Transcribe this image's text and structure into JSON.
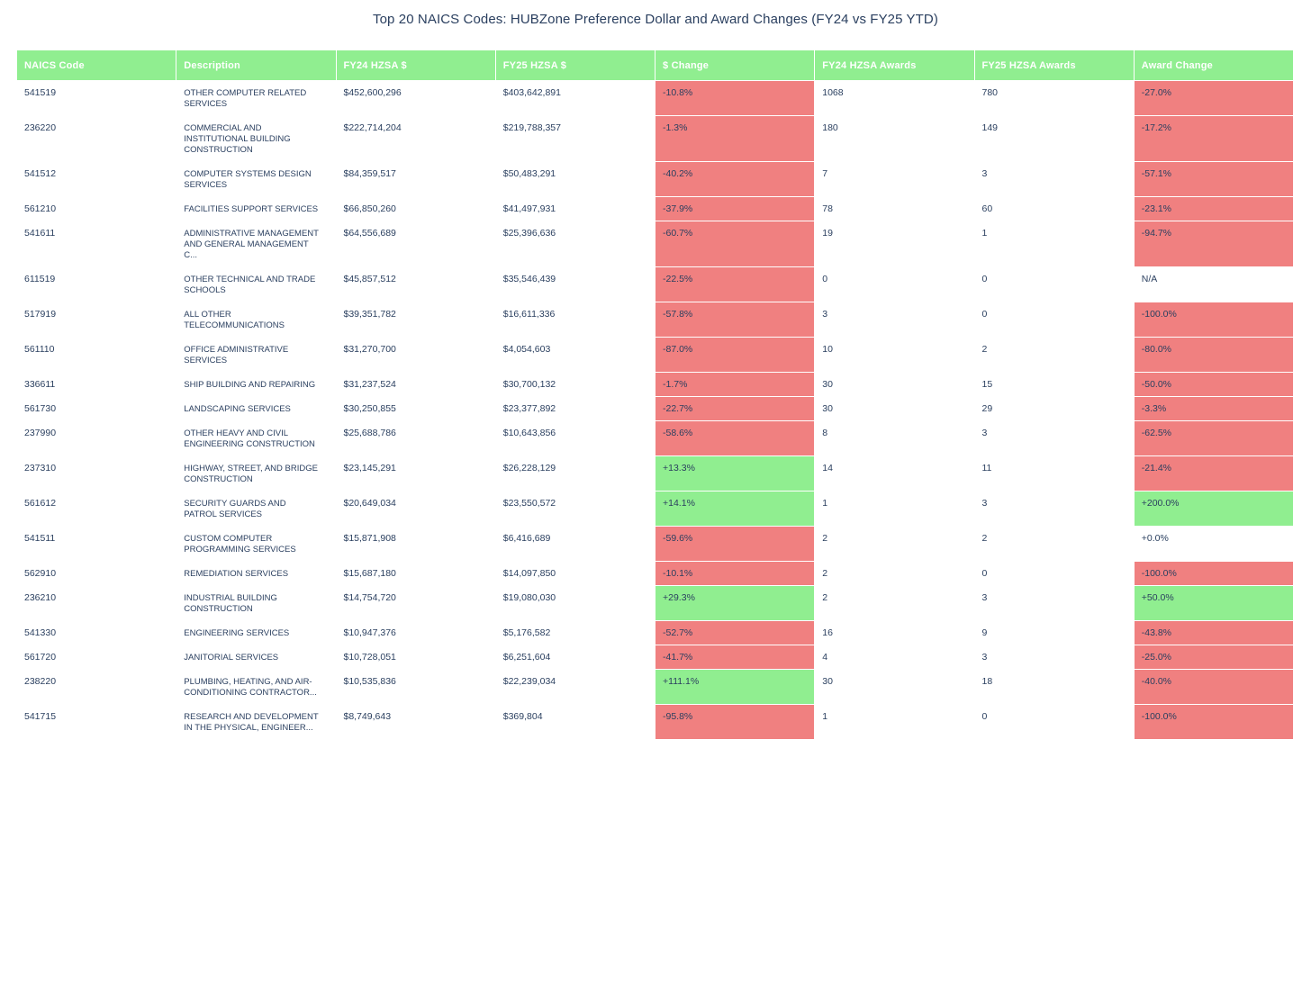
{
  "title": "Top 20 NAICS Codes: HUBZone Preference Dollar and Award Changes (FY24 vs FY25 YTD)",
  "colors": {
    "header_bg": "#90EE90",
    "header_text": "#FFFFFF",
    "negative_bg": "#F08080",
    "positive_bg": "#90EE90",
    "neutral_bg": "#FFFFFF",
    "text_color": "#2A3F5F"
  },
  "chart_data": {
    "type": "table",
    "title": "Top 20 NAICS Codes: HUBZone Preference Dollar and Award Changes (FY24 vs FY25 YTD)",
    "legend_position": "none",
    "grid": "white-cell-borders",
    "columns": [
      "NAICS Code",
      "Description",
      "FY24 HZSA $",
      "FY25 HZSA $",
      "$ Change",
      "FY24 HZSA Awards",
      "FY25 HZSA Awards",
      "Award Change"
    ],
    "rows": [
      {
        "naics": "541519",
        "description": "OTHER COMPUTER RELATED SERVICES",
        "fy24_hzsa_dollars": "$452,600,296",
        "fy25_hzsa_dollars": "$403,642,891",
        "dollar_change": "-10.8%",
        "dollar_change_sentiment": "negative",
        "fy24_hzsa_awards": "1068",
        "fy25_hzsa_awards": "780",
        "award_change": "-27.0%",
        "award_change_sentiment": "negative"
      },
      {
        "naics": "236220",
        "description": "COMMERCIAL AND INSTITUTIONAL BUILDING CONSTRUCTION",
        "fy24_hzsa_dollars": "$222,714,204",
        "fy25_hzsa_dollars": "$219,788,357",
        "dollar_change": "-1.3%",
        "dollar_change_sentiment": "negative",
        "fy24_hzsa_awards": "180",
        "fy25_hzsa_awards": "149",
        "award_change": "-17.2%",
        "award_change_sentiment": "negative"
      },
      {
        "naics": "541512",
        "description": "COMPUTER SYSTEMS DESIGN SERVICES",
        "fy24_hzsa_dollars": "$84,359,517",
        "fy25_hzsa_dollars": "$50,483,291",
        "dollar_change": "-40.2%",
        "dollar_change_sentiment": "negative",
        "fy24_hzsa_awards": "7",
        "fy25_hzsa_awards": "3",
        "award_change": "-57.1%",
        "award_change_sentiment": "negative"
      },
      {
        "naics": "561210",
        "description": "FACILITIES SUPPORT SERVICES",
        "fy24_hzsa_dollars": "$66,850,260",
        "fy25_hzsa_dollars": "$41,497,931",
        "dollar_change": "-37.9%",
        "dollar_change_sentiment": "negative",
        "fy24_hzsa_awards": "78",
        "fy25_hzsa_awards": "60",
        "award_change": "-23.1%",
        "award_change_sentiment": "negative"
      },
      {
        "naics": "541611",
        "description": "ADMINISTRATIVE MANAGEMENT AND GENERAL MANAGEMENT C...",
        "fy24_hzsa_dollars": "$64,556,689",
        "fy25_hzsa_dollars": "$25,396,636",
        "dollar_change": "-60.7%",
        "dollar_change_sentiment": "negative",
        "fy24_hzsa_awards": "19",
        "fy25_hzsa_awards": "1",
        "award_change": "-94.7%",
        "award_change_sentiment": "negative"
      },
      {
        "naics": "611519",
        "description": "OTHER TECHNICAL AND TRADE SCHOOLS",
        "fy24_hzsa_dollars": "$45,857,512",
        "fy25_hzsa_dollars": "$35,546,439",
        "dollar_change": "-22.5%",
        "dollar_change_sentiment": "negative",
        "fy24_hzsa_awards": "0",
        "fy25_hzsa_awards": "0",
        "award_change": "N/A",
        "award_change_sentiment": "neutral"
      },
      {
        "naics": "517919",
        "description": "ALL OTHER TELECOMMUNICATIONS",
        "fy24_hzsa_dollars": "$39,351,782",
        "fy25_hzsa_dollars": "$16,611,336",
        "dollar_change": "-57.8%",
        "dollar_change_sentiment": "negative",
        "fy24_hzsa_awards": "3",
        "fy25_hzsa_awards": "0",
        "award_change": "-100.0%",
        "award_change_sentiment": "negative"
      },
      {
        "naics": "561110",
        "description": "OFFICE ADMINISTRATIVE SERVICES",
        "fy24_hzsa_dollars": "$31,270,700",
        "fy25_hzsa_dollars": "$4,054,603",
        "dollar_change": "-87.0%",
        "dollar_change_sentiment": "negative",
        "fy24_hzsa_awards": "10",
        "fy25_hzsa_awards": "2",
        "award_change": "-80.0%",
        "award_change_sentiment": "negative"
      },
      {
        "naics": "336611",
        "description": "SHIP BUILDING AND REPAIRING",
        "fy24_hzsa_dollars": "$31,237,524",
        "fy25_hzsa_dollars": "$30,700,132",
        "dollar_change": "-1.7%",
        "dollar_change_sentiment": "negative",
        "fy24_hzsa_awards": "30",
        "fy25_hzsa_awards": "15",
        "award_change": "-50.0%",
        "award_change_sentiment": "negative"
      },
      {
        "naics": "561730",
        "description": "LANDSCAPING SERVICES",
        "fy24_hzsa_dollars": "$30,250,855",
        "fy25_hzsa_dollars": "$23,377,892",
        "dollar_change": "-22.7%",
        "dollar_change_sentiment": "negative",
        "fy24_hzsa_awards": "30",
        "fy25_hzsa_awards": "29",
        "award_change": "-3.3%",
        "award_change_sentiment": "negative"
      },
      {
        "naics": "237990",
        "description": "OTHER HEAVY AND CIVIL ENGINEERING CONSTRUCTION",
        "fy24_hzsa_dollars": "$25,688,786",
        "fy25_hzsa_dollars": "$10,643,856",
        "dollar_change": "-58.6%",
        "dollar_change_sentiment": "negative",
        "fy24_hzsa_awards": "8",
        "fy25_hzsa_awards": "3",
        "award_change": "-62.5%",
        "award_change_sentiment": "negative"
      },
      {
        "naics": "237310",
        "description": "HIGHWAY, STREET, AND BRIDGE CONSTRUCTION",
        "fy24_hzsa_dollars": "$23,145,291",
        "fy25_hzsa_dollars": "$26,228,129",
        "dollar_change": "+13.3%",
        "dollar_change_sentiment": "positive",
        "fy24_hzsa_awards": "14",
        "fy25_hzsa_awards": "11",
        "award_change": "-21.4%",
        "award_change_sentiment": "negative"
      },
      {
        "naics": "561612",
        "description": "SECURITY GUARDS AND PATROL SERVICES",
        "fy24_hzsa_dollars": "$20,649,034",
        "fy25_hzsa_dollars": "$23,550,572",
        "dollar_change": "+14.1%",
        "dollar_change_sentiment": "positive",
        "fy24_hzsa_awards": "1",
        "fy25_hzsa_awards": "3",
        "award_change": "+200.0%",
        "award_change_sentiment": "positive"
      },
      {
        "naics": "541511",
        "description": "CUSTOM COMPUTER PROGRAMMING SERVICES",
        "fy24_hzsa_dollars": "$15,871,908",
        "fy25_hzsa_dollars": "$6,416,689",
        "dollar_change": "-59.6%",
        "dollar_change_sentiment": "negative",
        "fy24_hzsa_awards": "2",
        "fy25_hzsa_awards": "2",
        "award_change": "+0.0%",
        "award_change_sentiment": "neutral"
      },
      {
        "naics": "562910",
        "description": "REMEDIATION SERVICES",
        "fy24_hzsa_dollars": "$15,687,180",
        "fy25_hzsa_dollars": "$14,097,850",
        "dollar_change": "-10.1%",
        "dollar_change_sentiment": "negative",
        "fy24_hzsa_awards": "2",
        "fy25_hzsa_awards": "0",
        "award_change": "-100.0%",
        "award_change_sentiment": "negative"
      },
      {
        "naics": "236210",
        "description": "INDUSTRIAL BUILDING CONSTRUCTION",
        "fy24_hzsa_dollars": "$14,754,720",
        "fy25_hzsa_dollars": "$19,080,030",
        "dollar_change": "+29.3%",
        "dollar_change_sentiment": "positive",
        "fy24_hzsa_awards": "2",
        "fy25_hzsa_awards": "3",
        "award_change": "+50.0%",
        "award_change_sentiment": "positive"
      },
      {
        "naics": "541330",
        "description": "ENGINEERING SERVICES",
        "fy24_hzsa_dollars": "$10,947,376",
        "fy25_hzsa_dollars": "$5,176,582",
        "dollar_change": "-52.7%",
        "dollar_change_sentiment": "negative",
        "fy24_hzsa_awards": "16",
        "fy25_hzsa_awards": "9",
        "award_change": "-43.8%",
        "award_change_sentiment": "negative"
      },
      {
        "naics": "561720",
        "description": "JANITORIAL SERVICES",
        "fy24_hzsa_dollars": "$10,728,051",
        "fy25_hzsa_dollars": "$6,251,604",
        "dollar_change": "-41.7%",
        "dollar_change_sentiment": "negative",
        "fy24_hzsa_awards": "4",
        "fy25_hzsa_awards": "3",
        "award_change": "-25.0%",
        "award_change_sentiment": "negative"
      },
      {
        "naics": "238220",
        "description": "PLUMBING, HEATING, AND AIR-CONDITIONING CONTRACTOR...",
        "fy24_hzsa_dollars": "$10,535,836",
        "fy25_hzsa_dollars": "$22,239,034",
        "dollar_change": "+111.1%",
        "dollar_change_sentiment": "positive",
        "fy24_hzsa_awards": "30",
        "fy25_hzsa_awards": "18",
        "award_change": "-40.0%",
        "award_change_sentiment": "negative"
      },
      {
        "naics": "541715",
        "description": "RESEARCH AND DEVELOPMENT IN THE PHYSICAL, ENGINEER...",
        "fy24_hzsa_dollars": "$8,749,643",
        "fy25_hzsa_dollars": "$369,804",
        "dollar_change": "-95.8%",
        "dollar_change_sentiment": "negative",
        "fy24_hzsa_awards": "1",
        "fy25_hzsa_awards": "0",
        "award_change": "-100.0%",
        "award_change_sentiment": "negative"
      }
    ]
  }
}
